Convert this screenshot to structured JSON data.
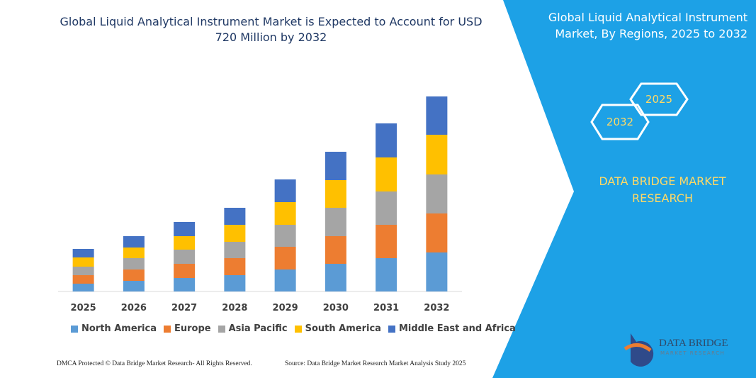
{
  "chart_data": {
    "type": "stacked-bar",
    "title": "Global Liquid Analytical Instrument Market is Expected to Account for USD 720 Million by 2032",
    "categories": [
      "2025",
      "2026",
      "2027",
      "2028",
      "2029",
      "2030",
      "2031",
      "2032"
    ],
    "series": [
      {
        "name": "North America",
        "color": "#5b9bd5",
        "values": [
          11,
          15,
          19,
          23,
          31,
          39,
          47,
          55
        ]
      },
      {
        "name": "Europe",
        "color": "#ed7d31",
        "values": [
          12,
          16,
          20,
          24,
          32,
          39,
          47,
          55
        ]
      },
      {
        "name": "Asia Pacific",
        "color": "#a5a5a5",
        "values": [
          12,
          16,
          20,
          23,
          31,
          40,
          47,
          55
        ]
      },
      {
        "name": "South America",
        "color": "#ffc000",
        "values": [
          13,
          15,
          19,
          24,
          32,
          39,
          48,
          56
        ]
      },
      {
        "name": "Middle East and Africa",
        "color": "#4472c4",
        "values": [
          12,
          16,
          20,
          24,
          32,
          40,
          48,
          54
        ]
      }
    ],
    "ylim": [
      0,
      300
    ]
  },
  "side_panel": {
    "title": "Global Liquid Analytical Instrument Market, By Regions, 2025 to 2032",
    "hex_labels": [
      "2025",
      "2032"
    ],
    "brand": "DATA BRIDGE MARKET RESEARCH"
  },
  "logo": {
    "name": "DATA BRIDGE",
    "tagline": "MARKET RESEARCH"
  },
  "footer": {
    "left": "DMCA Protected © Data Bridge Market Research- All Rights Reserved.",
    "right": "Source: Data Bridge Market Research Market Analysis Study 2025"
  }
}
